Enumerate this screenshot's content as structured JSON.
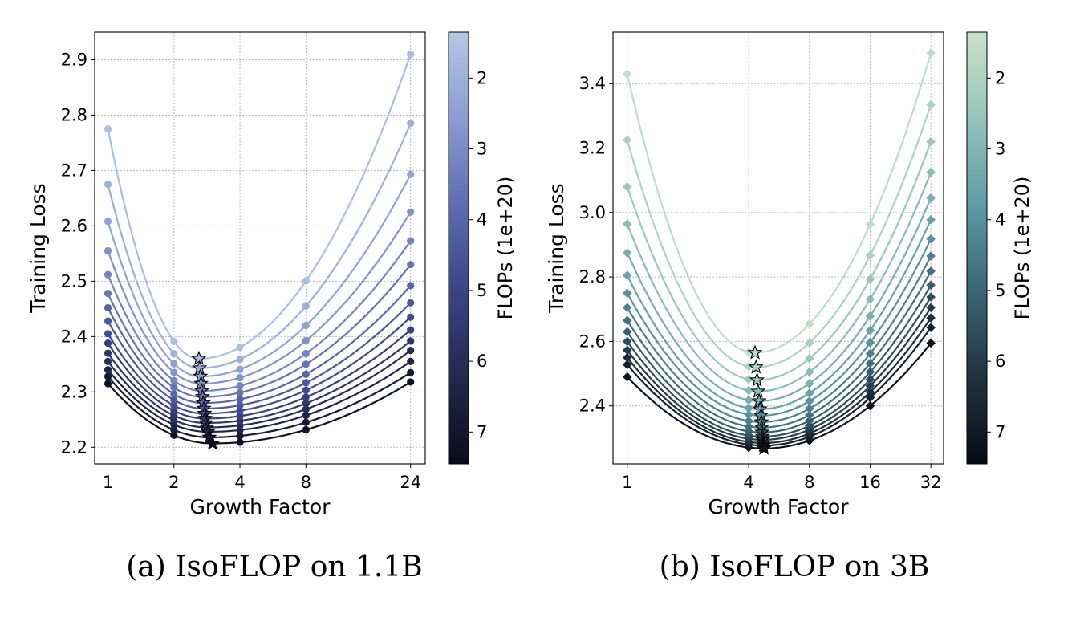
{
  "captions": {
    "a": "(a) IsoFLOP on 1.1B",
    "b": "(b) IsoFLOP on 3B"
  },
  "chart_data": [
    {
      "type": "line",
      "panel": "a",
      "xlabel": "Growth Factor",
      "ylabel": "Training Loss",
      "x_scale": "log2",
      "x_ticks": [
        "1",
        "2",
        "4",
        "8",
        "24"
      ],
      "x_tick_values": [
        1,
        2,
        4,
        8,
        24
      ],
      "xlim": [
        0.87,
        28
      ],
      "y_ticks": [
        "2.2",
        "2.3",
        "2.4",
        "2.5",
        "2.6",
        "2.7",
        "2.8",
        "2.9"
      ],
      "ylim": [
        2.17,
        2.95
      ],
      "grid": true,
      "marker": "circle",
      "optimum_marker": "star",
      "x_points": [
        1,
        2,
        4,
        8,
        24
      ],
      "colorbar": {
        "label": "FLOPs (1e+20)",
        "ticks": [
          "2",
          "3",
          "4",
          "5",
          "6",
          "7"
        ],
        "range": [
          1.35,
          7.45
        ],
        "colors": [
          "#b5c6e4",
          "#8a9cd0",
          "#5d6db0",
          "#3b4585",
          "#23284e",
          "#0b0b19"
        ]
      },
      "flop_levels": [
        1.6,
        2.0,
        2.4,
        2.8,
        3.2,
        3.6,
        4.0,
        4.4,
        4.8,
        5.2,
        5.6,
        6.0,
        6.4,
        6.8,
        7.2
      ],
      "series_endpoints": {
        "loss_at_1": [
          2.775,
          2.675,
          2.608,
          2.555,
          2.512,
          2.478,
          2.452,
          2.428,
          2.405,
          2.388,
          2.37,
          2.355,
          2.34,
          2.328,
          2.315
        ],
        "loss_at_24": [
          2.91,
          2.785,
          2.693,
          2.625,
          2.573,
          2.53,
          2.492,
          2.461,
          2.435,
          2.412,
          2.392,
          2.375,
          2.355,
          2.335,
          2.318
        ],
        "optimum_x": [
          2.6,
          2.62,
          2.64,
          2.66,
          2.68,
          2.7,
          2.72,
          2.74,
          2.76,
          2.78,
          2.8,
          2.83,
          2.86,
          2.9,
          3.0
        ],
        "optimum_loss": [
          2.36,
          2.343,
          2.328,
          2.315,
          2.302,
          2.291,
          2.28,
          2.27,
          2.261,
          2.252,
          2.244,
          2.236,
          2.228,
          2.218,
          2.207
        ]
      }
    },
    {
      "type": "line",
      "panel": "b",
      "xlabel": "Growth Factor",
      "ylabel": "Training Loss",
      "x_scale": "log2",
      "x_ticks": [
        "1",
        "4",
        "8",
        "16",
        "32"
      ],
      "x_tick_values": [
        1,
        4,
        8,
        16,
        32
      ],
      "xlim": [
        0.85,
        37
      ],
      "y_ticks": [
        "2.4",
        "2.6",
        "2.8",
        "3.0",
        "3.2",
        "3.4"
      ],
      "ylim": [
        2.22,
        3.56
      ],
      "grid": true,
      "marker": "diamond",
      "optimum_marker": "star",
      "x_points": [
        1,
        4,
        8,
        16,
        32
      ],
      "colorbar": {
        "label": "FLOPs (1e+20)",
        "ticks": [
          "2",
          "3",
          "4",
          "5",
          "6",
          "7"
        ],
        "range": [
          1.35,
          7.45
        ],
        "colors": [
          "#c8e2cc",
          "#95c4b8",
          "#5f9aa6",
          "#3a6676",
          "#1f3440",
          "#090b13"
        ]
      },
      "flop_levels": [
        1.6,
        2.0,
        2.4,
        2.8,
        3.2,
        3.6,
        4.0,
        4.4,
        4.8,
        5.2,
        5.6,
        6.0,
        6.4,
        6.8,
        7.2
      ],
      "series_endpoints": {
        "loss_at_1": [
          3.43,
          3.225,
          3.08,
          2.965,
          2.875,
          2.805,
          2.75,
          2.705,
          2.665,
          2.63,
          2.6,
          2.573,
          2.55,
          2.528,
          2.49
        ],
        "loss_at_32": [
          3.495,
          3.335,
          3.22,
          3.125,
          3.045,
          2.978,
          2.918,
          2.865,
          2.818,
          2.775,
          2.738,
          2.705,
          2.673,
          2.643,
          2.595
        ],
        "optimum_x": [
          4.3,
          4.35,
          4.4,
          4.45,
          4.5,
          4.55,
          4.6,
          4.62,
          4.64,
          4.66,
          4.68,
          4.7,
          4.72,
          4.74,
          4.76
        ],
        "optimum_loss": [
          2.565,
          2.52,
          2.48,
          2.445,
          2.415,
          2.39,
          2.37,
          2.35,
          2.333,
          2.318,
          2.305,
          2.295,
          2.285,
          2.277,
          2.268
        ]
      }
    }
  ]
}
